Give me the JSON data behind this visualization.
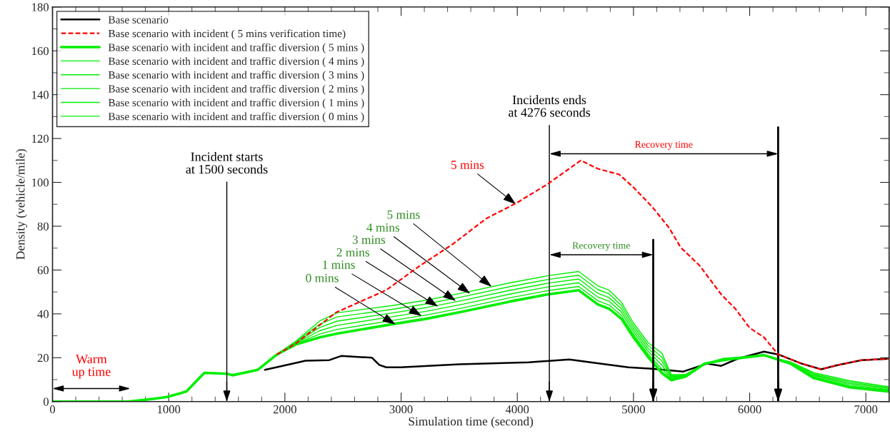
{
  "chart_data": {
    "type": "line",
    "xlabel": "Simulation time (second)",
    "ylabel": "Density (vehicle/mile)",
    "xlim": [
      0,
      7200
    ],
    "xticks": [
      0,
      1000,
      2000,
      3000,
      4000,
      5000,
      6000,
      7000
    ],
    "ylim": [
      0,
      180
    ],
    "yticks": [
      0,
      20,
      40,
      60,
      80,
      100,
      120,
      140,
      160,
      180
    ],
    "grid": false,
    "legend": "top left",
    "marker": "none",
    "series": [
      {
        "name": "Base scenario",
        "color": "#000000",
        "line_style": "solid",
        "x": [
          1828,
          1973,
          2177,
          2382,
          2484,
          2750,
          2812,
          2873,
          2996,
          3500,
          4098,
          4448,
          4712,
          4957,
          5160,
          5429,
          5632,
          5755,
          5896,
          6123,
          6245,
          6448,
          6614,
          6755,
          6963,
          7196
        ],
        "values": [
          14.5,
          16.2,
          18.6,
          18.9,
          20.8,
          20,
          16.7,
          15.6,
          15.6,
          17,
          17.9,
          19.2,
          17.3,
          15.6,
          15,
          13.7,
          17.3,
          16.3,
          19.5,
          22.8,
          21.5,
          17.3,
          14.7,
          16.6,
          18.9,
          19.5
        ]
      },
      {
        "name": "Base scenario with incident ( 5 mins verification time)",
        "color": "#ff0000",
        "line_style": "dashed",
        "x": [
          1932,
          2092,
          2442,
          2871,
          3160,
          3442,
          3730,
          3994,
          4264,
          4546,
          4693,
          4877,
          5000,
          5160,
          5307,
          5405,
          5571,
          5755,
          5877,
          6000,
          6123,
          6245,
          6448,
          6614,
          6755,
          6963,
          7196
        ],
        "values": [
          21.5,
          26.4,
          40.7,
          50.8,
          61.9,
          71.7,
          83.4,
          90.6,
          99.3,
          110,
          106.2,
          103.6,
          97.7,
          88.9,
          79.2,
          70.4,
          61.9,
          48.9,
          42.3,
          33.6,
          29.3,
          21.5,
          17.3,
          14.7,
          16.6,
          18.9,
          19.5
        ]
      },
      {
        "name": "Base scenario with incident and traffic diversion ( 5 mins )",
        "color": "#00ee00",
        "line_style": "solid",
        "x": [
          0,
          650,
          865,
          988,
          1153,
          1307,
          1500,
          1550,
          1767,
          1932,
          2092,
          2300,
          2450,
          2914,
          3221,
          3528,
          3933,
          4264,
          4528,
          4693,
          4791,
          4896,
          5000,
          5123,
          5245,
          5325,
          5448,
          5613,
          5773,
          6123,
          6350,
          6552,
          6859,
          7196
        ],
        "values": [
          0,
          0,
          1.2,
          2.1,
          4.6,
          13.1,
          12.7,
          12,
          14.5,
          21.5,
          26,
          29.3,
          31,
          35.2,
          37.8,
          41,
          45.6,
          48.9,
          50.8,
          44.3,
          42.3,
          37.8,
          29.3,
          20.5,
          13,
          9.8,
          11.4,
          17.3,
          18.9,
          21.2,
          17.3,
          10.7,
          6.5,
          4.6
        ]
      },
      {
        "name": "Base scenario with incident and traffic diversion ( 4 mins )",
        "color": "#00ee00",
        "line_style": "solid",
        "x": [
          0,
          650,
          865,
          988,
          1153,
          1307,
          1500,
          1550,
          1767,
          1932,
          2092,
          2300,
          2450,
          2914,
          3221,
          3528,
          3933,
          4264,
          4528,
          4693,
          4791,
          4896,
          5000,
          5123,
          5245,
          5325,
          5448,
          5613,
          5773,
          6123,
          6350,
          6552,
          6859,
          7196
        ],
        "values": [
          0,
          0,
          1.2,
          2.1,
          4.6,
          13.1,
          12.7,
          12,
          14.5,
          21.5,
          26.3,
          30.8,
          32.9,
          36.9,
          39.5,
          42.7,
          47.3,
          50.6,
          52.5,
          46,
          44,
          39.3,
          30.6,
          21.8,
          14.8,
          10.3,
          11.6,
          17.3,
          19.1,
          21.2,
          17.5,
          11.2,
          7.1,
          5.1
        ]
      },
      {
        "name": "Base scenario with incident and traffic diversion ( 3 mins )",
        "color": "#00ee00",
        "line_style": "solid",
        "x": [
          0,
          650,
          865,
          988,
          1153,
          1307,
          1500,
          1550,
          1767,
          1932,
          2092,
          2300,
          2450,
          2914,
          3221,
          3528,
          3933,
          4264,
          4528,
          4693,
          4791,
          4896,
          5000,
          5123,
          5245,
          5325,
          5448,
          5613,
          5773,
          6123,
          6350,
          6552,
          6859,
          7196
        ],
        "values": [
          0,
          0,
          1.2,
          2.1,
          4.6,
          13.1,
          12.7,
          12,
          14.5,
          21.5,
          26.6,
          32.3,
          34.8,
          38.6,
          41.2,
          44.4,
          49,
          52.3,
          54.2,
          47.7,
          45.7,
          40.8,
          31.9,
          23.1,
          16.6,
          10.8,
          11.8,
          17.3,
          19.2,
          21.2,
          17.6,
          11.7,
          7.7,
          5.5
        ]
      },
      {
        "name": "Base scenario with incident and traffic diversion ( 2 mins )",
        "color": "#00ee00",
        "line_style": "solid",
        "x": [
          0,
          650,
          865,
          988,
          1153,
          1307,
          1500,
          1550,
          1767,
          1932,
          2092,
          2300,
          2450,
          2914,
          3221,
          3528,
          3933,
          4264,
          4528,
          4693,
          4791,
          4896,
          5000,
          5123,
          5245,
          5325,
          5448,
          5613,
          5773,
          6123,
          6350,
          6552,
          6859,
          7196
        ],
        "values": [
          0,
          0,
          1.2,
          2.1,
          4.6,
          13.1,
          12.7,
          12,
          14.5,
          21.5,
          26.9,
          33.8,
          36.7,
          40.3,
          42.9,
          46.1,
          50.7,
          54,
          55.9,
          49.4,
          47.4,
          42.3,
          33.2,
          24.4,
          18.4,
          11.3,
          12,
          17.3,
          19.4,
          21.2,
          17.8,
          12.2,
          8.3,
          6
        ]
      },
      {
        "name": "Base scenario with incident and traffic diversion ( 1 mins )",
        "color": "#00ee00",
        "line_style": "solid",
        "x": [
          0,
          650,
          865,
          988,
          1153,
          1307,
          1500,
          1550,
          1767,
          1932,
          2092,
          2300,
          2450,
          2914,
          3221,
          3528,
          3933,
          4264,
          4528,
          4693,
          4791,
          4896,
          5000,
          5123,
          5245,
          5325,
          5448,
          5613,
          5773,
          6123,
          6350,
          6552,
          6859,
          7196
        ],
        "values": [
          0,
          0,
          1.2,
          2.1,
          4.6,
          13.1,
          12.7,
          12,
          14.5,
          21.5,
          27.2,
          35.3,
          38.6,
          42,
          44.6,
          47.8,
          52.4,
          55.7,
          57.6,
          51.1,
          49.1,
          43.8,
          34.5,
          25.7,
          20.2,
          11.8,
          12.2,
          17.3,
          19.5,
          21.2,
          17.9,
          12.7,
          8.9,
          6.4
        ]
      },
      {
        "name": "Base scenario with incident and traffic diversion ( 0 mins )",
        "color": "#00ee00",
        "line_style": "solid",
        "x": [
          0,
          650,
          865,
          988,
          1153,
          1307,
          1500,
          1550,
          1767,
          1932,
          2092,
          2300,
          2450,
          2914,
          3221,
          3528,
          3933,
          4264,
          4528,
          4693,
          4791,
          4896,
          5000,
          5123,
          5245,
          5325,
          5448,
          5613,
          5773,
          6123,
          6350,
          6552,
          6859,
          7196
        ],
        "values": [
          0,
          0,
          1.2,
          2.1,
          4.6,
          13.1,
          12.7,
          12,
          14.5,
          21.5,
          27.5,
          36.8,
          40.5,
          43.7,
          46.3,
          49.5,
          54.1,
          57.4,
          59.3,
          52.8,
          50.8,
          45.3,
          35.8,
          27,
          22,
          12.3,
          12.4,
          17.3,
          19.7,
          21.2,
          18.1,
          13.2,
          9.5,
          6.8
        ]
      }
    ],
    "annotations": [
      {
        "text": "5 mins",
        "x": 3988,
        "y": 90
      },
      {
        "text": "5 mins",
        "x": 3779,
        "y": 52.4
      },
      {
        "text": "4 mins",
        "x": 3595,
        "y": 49.2
      },
      {
        "text": "3 mins",
        "x": 3472,
        "y": 45.9
      },
      {
        "text": "2 mins",
        "x": 3319,
        "y": 43.3
      },
      {
        "text": "1 mins",
        "x": 3178,
        "y": 39
      },
      {
        "text": "0 mins",
        "x": 2951,
        "y": 35.2
      },
      "Recovery time",
      "Recovery time",
      "Warm\nup time"
    ],
    "ref_lines": [
      {
        "axis": "x",
        "value": 1500,
        "label": "Incident starts\nat 1500 seconds"
      },
      {
        "axis": "x",
        "value": 4276,
        "label": "Incidents ends\nat 4276 seconds"
      },
      {
        "axis": "x",
        "value": 5170
      },
      {
        "axis": "x",
        "value": 6245
      }
    ]
  }
}
